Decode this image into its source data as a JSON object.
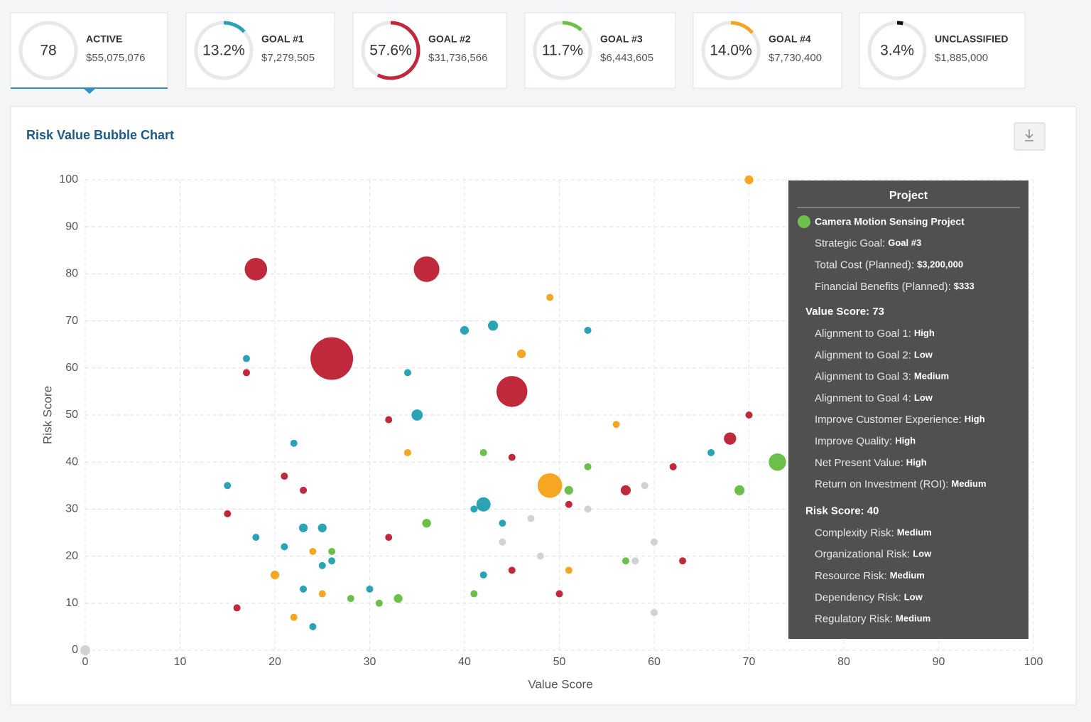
{
  "cards": [
    {
      "count": 78,
      "label": "ACTIVE",
      "amount": "$55,075,076"
    },
    {
      "percent": 13.2,
      "percent_label": "13.2%",
      "label": "GOAL #1",
      "amount": "$7,279,505",
      "color": "#2ba3b5"
    },
    {
      "percent": 57.6,
      "percent_label": "57.6%",
      "label": "GOAL #2",
      "amount": "$31,736,566",
      "color": "#c0283c"
    },
    {
      "percent": 11.7,
      "percent_label": "11.7%",
      "label": "GOAL #3",
      "amount": "$6,443,605",
      "color": "#6cc04a"
    },
    {
      "percent": 14.0,
      "percent_label": "14.0%",
      "label": "GOAL #4",
      "amount": "$7,730,400",
      "color": "#f5a623"
    },
    {
      "percent": 3.4,
      "percent_label": "3.4%",
      "label": "UNCLASSIFIED",
      "amount": "$1,885,000",
      "color": "#111111"
    }
  ],
  "chart_data": {
    "type": "bubble",
    "title": "Risk Value Bubble Chart",
    "x_label": "Value Score",
    "y_label": "Risk Score",
    "xlim": [
      0,
      100
    ],
    "ylim": [
      0,
      100
    ],
    "xticks": [
      0,
      10,
      20,
      30,
      40,
      50,
      60,
      70,
      80,
      90,
      100
    ],
    "yticks": [
      0,
      10,
      20,
      30,
      40,
      50,
      60,
      70,
      80,
      90,
      100
    ],
    "grid": true,
    "series": [
      {
        "color": "#c0283c",
        "x": [
          18,
          36,
          26,
          45,
          17,
          32,
          45,
          21,
          23,
          15,
          32,
          16,
          45,
          50,
          51,
          57,
          62,
          68,
          70,
          63
        ],
        "values": [
          81,
          81,
          62,
          55,
          59,
          49,
          41,
          37,
          34,
          29,
          24,
          9,
          17,
          12,
          31,
          34,
          39,
          45,
          50,
          19
        ],
        "sizes": [
          10,
          13,
          36,
          19,
          1,
          1,
          1,
          1,
          1,
          1,
          1,
          1,
          1,
          1,
          1,
          2,
          1,
          3,
          1,
          1
        ]
      },
      {
        "color": "#2ba3b5",
        "x": [
          17,
          34,
          40,
          43,
          53,
          35,
          22,
          15,
          66,
          42,
          41,
          44,
          18,
          21,
          23,
          25,
          25,
          26,
          23,
          30,
          24,
          42
        ],
        "values": [
          62,
          59,
          68,
          69,
          68,
          50,
          44,
          35,
          42,
          31,
          30,
          27,
          24,
          22,
          26,
          26,
          18,
          19,
          13,
          13,
          5,
          16
        ],
        "sizes": [
          1,
          1,
          1.5,
          2,
          1,
          2.5,
          1,
          1,
          1,
          4,
          1,
          1,
          1,
          1,
          1.5,
          1.5,
          1,
          1,
          1,
          1,
          1,
          1
        ]
      },
      {
        "color": "#6cc04a",
        "x": [
          42,
          53,
          73,
          69,
          51,
          36,
          26,
          28,
          31,
          33,
          41,
          57
        ],
        "values": [
          42,
          39,
          40,
          34,
          34,
          27,
          21,
          11,
          10,
          11,
          12,
          19
        ],
        "sizes": [
          1,
          1,
          6,
          2,
          1.5,
          1.5,
          1,
          1,
          1,
          1.5,
          1,
          1
        ]
      },
      {
        "color": "#f5a623",
        "x": [
          70,
          49,
          46,
          56,
          34,
          49,
          24,
          20,
          25,
          22,
          51
        ],
        "values": [
          100,
          75,
          63,
          48,
          42,
          35,
          21,
          16,
          12,
          7,
          17
        ],
        "sizes": [
          1.5,
          1,
          1.5,
          1,
          1,
          12,
          1,
          1.5,
          1,
          1,
          1
        ]
      },
      {
        "color": "#d0d3d6",
        "x": [
          0,
          59,
          53,
          47,
          44,
          48,
          58,
          60,
          60
        ],
        "values": [
          0,
          35,
          30,
          28,
          23,
          20,
          19,
          23,
          8
        ],
        "sizes": [
          2,
          1,
          1,
          1,
          1,
          1,
          1,
          1,
          1
        ]
      }
    ]
  },
  "tooltip": {
    "title": "Project",
    "color": "#6cc04a",
    "project": "Camera Motion Sensing Project",
    "details": [
      [
        "Strategic Goal:",
        "Goal #3"
      ],
      [
        "Total Cost (Planned):",
        "$3,200,000"
      ],
      [
        "Financial Benefits (Planned):",
        "$333"
      ]
    ],
    "sections": [
      {
        "heading": "Value Score: 73",
        "items": [
          [
            "Alignment to Goal 1:",
            "High"
          ],
          [
            "Alignment to Goal 2:",
            "Low"
          ],
          [
            "Alignment to Goal 3:",
            "Medium"
          ],
          [
            "Alignment to Goal 4:",
            "Low"
          ],
          [
            "Improve Customer Experience:",
            "High"
          ],
          [
            "Improve Quality:",
            "High"
          ],
          [
            "Net Present Value:",
            "High"
          ],
          [
            "Return on Investment (ROI):",
            "Medium"
          ]
        ]
      },
      {
        "heading": "Risk Score: 40",
        "items": [
          [
            "Complexity Risk:",
            "Medium"
          ],
          [
            "Organizational Risk:",
            "Low"
          ],
          [
            "Resource Risk:",
            "Medium"
          ],
          [
            "Dependency Risk:",
            "Low"
          ],
          [
            "Regulatory Risk:",
            "Medium"
          ]
        ]
      }
    ]
  }
}
